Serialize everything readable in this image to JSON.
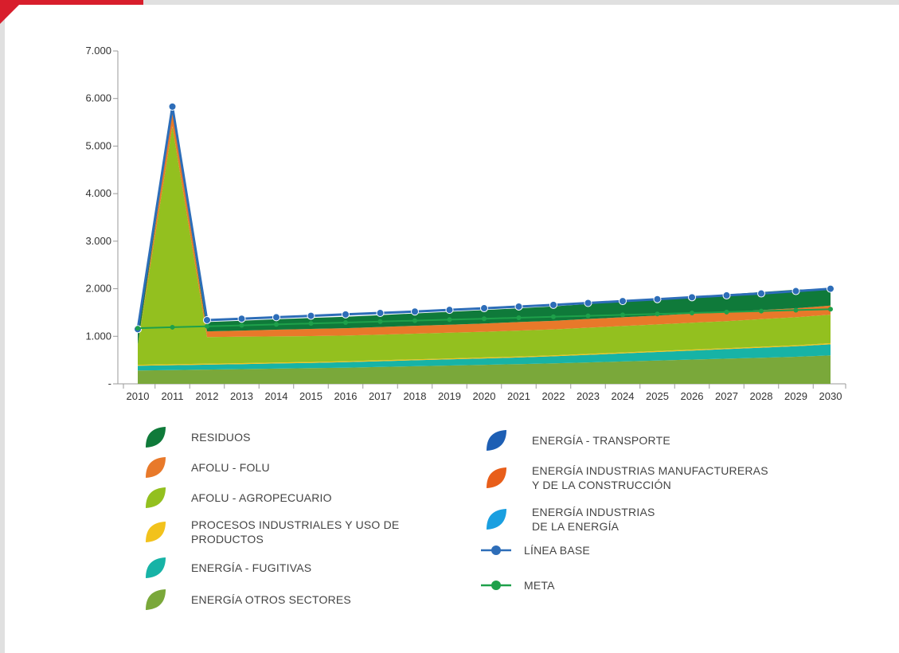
{
  "chart_data": {
    "type": "area",
    "x": [
      "2010",
      "2011",
      "2012",
      "2013",
      "2014",
      "2015",
      "2016",
      "2017",
      "2018",
      "2019",
      "2020",
      "2021",
      "2022",
      "2023",
      "2024",
      "2025",
      "2026",
      "2027",
      "2028",
      "2029",
      "2030"
    ],
    "y_ticks": [
      "-",
      "1.000",
      "2.000",
      "3.000",
      "4.000",
      "5.000",
      "6.000",
      "7.000"
    ],
    "ylim": [
      0,
      7000
    ],
    "stacked": true,
    "series": [
      {
        "name": "ENERGÍA OTROS SECTORES",
        "color": "#7aa83a",
        "values": [
          280,
          290,
          300,
          310,
          320,
          330,
          340,
          355,
          370,
          385,
          400,
          415,
          430,
          450,
          470,
          490,
          510,
          530,
          550,
          570,
          600
        ]
      },
      {
        "name": "ENERGÍA - FUGITIVAS",
        "color": "#17b3a6",
        "values": [
          100,
          102,
          104,
          106,
          108,
          110,
          115,
          120,
          125,
          130,
          135,
          140,
          150,
          160,
          170,
          180,
          190,
          200,
          210,
          220,
          230
        ]
      },
      {
        "name": "PROCESOS INDUSTRIALES Y USO DE PRODUCTOS",
        "color": "#f2c21c",
        "values": [
          20,
          20,
          20,
          20,
          20,
          20,
          20,
          20,
          20,
          20,
          20,
          20,
          20,
          20,
          20,
          20,
          20,
          20,
          20,
          20,
          25
        ]
      },
      {
        "name": "AFOLU - AGROPECUARIO",
        "color": "#93c01f",
        "values": [
          420,
          5000,
          560,
          555,
          550,
          545,
          540,
          540,
          540,
          540,
          540,
          545,
          545,
          550,
          555,
          560,
          565,
          570,
          580,
          590,
          600
        ]
      },
      {
        "name": "AFOLU - FOLU",
        "color": "#e8792a",
        "values": [
          0,
          350,
          120,
          130,
          140,
          150,
          155,
          160,
          165,
          170,
          175,
          180,
          180,
          185,
          185,
          185,
          190,
          190,
          190,
          190,
          190
        ]
      },
      {
        "name": "ENERGÍA INDUSTRIAS MANUFACTURERAS Y DE LA CONSTRUCCIÓN",
        "color": "#e85e1a",
        "values": [
          0,
          0,
          0,
          0,
          0,
          0,
          0,
          0,
          0,
          0,
          0,
          0,
          0,
          0,
          0,
          0,
          0,
          0,
          0,
          0,
          0
        ]
      },
      {
        "name": "RESIDUOS",
        "color": "#0f7a3a",
        "values": [
          330,
          70,
          195,
          205,
          220,
          230,
          240,
          250,
          260,
          270,
          280,
          290,
          305,
          315,
          330,
          345,
          355,
          370,
          380,
          390,
          355
        ]
      },
      {
        "name": "ENERGÍA - TRANSPORTE",
        "color": "#1e5fb4",
        "values": [
          0,
          0,
          0,
          0,
          0,
          0,
          0,
          0,
          0,
          0,
          0,
          0,
          0,
          0,
          0,
          0,
          0,
          0,
          0,
          0,
          0
        ]
      },
      {
        "name": "ENERGÍA INDUSTRIAS DE LA ENERGÍA",
        "color": "#1a9fe0",
        "values": [
          0,
          0,
          0,
          0,
          0,
          0,
          0,
          0,
          0,
          0,
          0,
          0,
          0,
          0,
          0,
          0,
          0,
          0,
          0,
          0,
          0
        ]
      }
    ],
    "lines": [
      {
        "name": "LÍNEA BASE",
        "color": "#2d6db8",
        "values": [
          1150,
          5830,
          1340,
          1370,
          1400,
          1430,
          1460,
          1490,
          1520,
          1555,
          1590,
          1625,
          1660,
          1700,
          1740,
          1780,
          1820,
          1860,
          1900,
          1950,
          2000
        ]
      },
      {
        "name": "META",
        "color": "#1ea04a",
        "values": [
          1170,
          1190,
          1210,
          1230,
          1250,
          1270,
          1290,
          1310,
          1330,
          1350,
          1370,
          1390,
          1410,
          1430,
          1450,
          1470,
          1490,
          1510,
          1530,
          1550,
          1570
        ]
      }
    ]
  },
  "legend": {
    "left": [
      {
        "label": "RESIDUOS",
        "color": "#0f7a3a",
        "icon": "leaf-icon"
      },
      {
        "label": "AFOLU - FOLU",
        "color": "#e8792a",
        "icon": "leaf-icon"
      },
      {
        "label": "AFOLU - AGROPECUARIO",
        "color": "#93c01f",
        "icon": "leaf-icon"
      },
      {
        "label": "PROCESOS INDUSTRIALES Y USO DE\nPRODUCTOS",
        "color": "#f2c21c",
        "icon": "leaf-icon"
      },
      {
        "label": "ENERGÍA - FUGITIVAS",
        "color": "#17b3a6",
        "icon": "leaf-icon"
      },
      {
        "label": "ENERGÍA OTROS SECTORES",
        "color": "#7aa83a",
        "icon": "leaf-icon"
      }
    ],
    "right": [
      {
        "label": "ENERGÍA - TRANSPORTE",
        "color": "#1e5fb4",
        "icon": "leaf-icon"
      },
      {
        "label": "ENERGÍA INDUSTRIAS MANUFACTURERAS\nY DE LA CONSTRUCCIÓN",
        "color": "#e85e1a",
        "icon": "leaf-icon"
      },
      {
        "label": "ENERGÍA INDUSTRIAS\nDE LA ENERGÍA",
        "color": "#1a9fe0",
        "icon": "leaf-icon"
      },
      {
        "label": "LÍNEA BASE",
        "color": "#2d6db8",
        "icon": "line-dot-icon"
      },
      {
        "label": "META",
        "color": "#1ea04a",
        "icon": "line-dot-icon"
      }
    ]
  }
}
